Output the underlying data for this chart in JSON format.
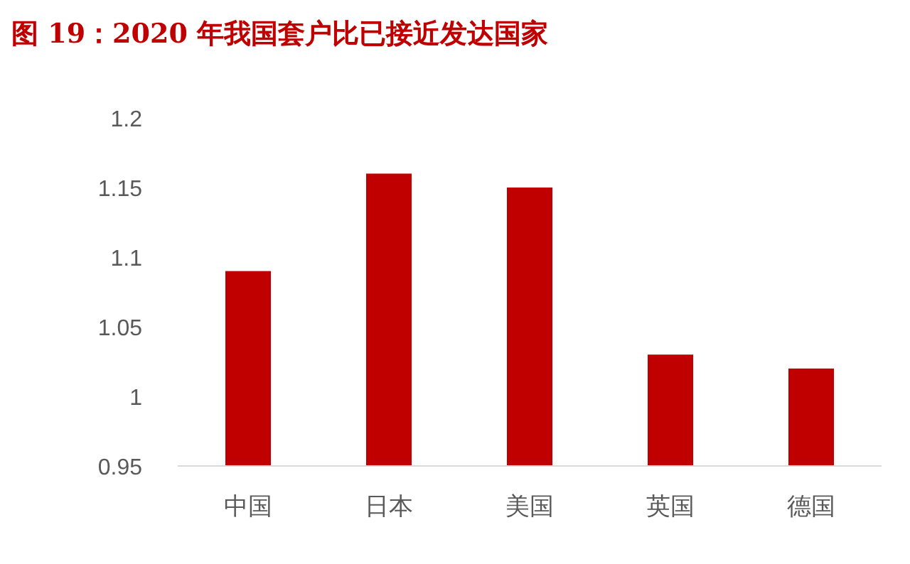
{
  "chart_data": {
    "type": "bar",
    "title": "图 19：2020 年我国套户比已接近发达国家",
    "categories": [
      "中国",
      "日本",
      "美国",
      "英国",
      "德国"
    ],
    "values": [
      1.09,
      1.16,
      1.15,
      1.03,
      1.02
    ],
    "color": "#c00000",
    "ylim": [
      0.95,
      1.2
    ],
    "yticks": [
      0.95,
      1,
      1.05,
      1.1,
      1.15,
      1.2
    ]
  }
}
